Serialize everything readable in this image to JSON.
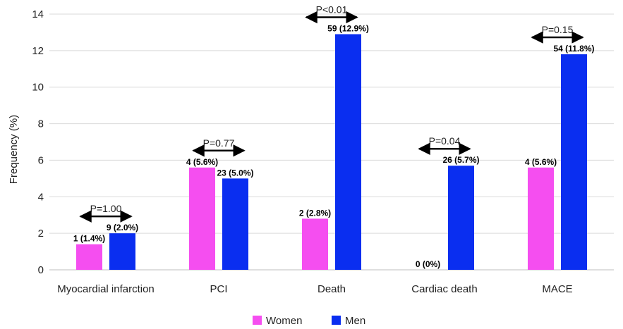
{
  "chart_data": {
    "type": "bar",
    "categories": [
      "Myocardial infarction",
      "PCI",
      "Death",
      "Cardiac death",
      "MACE"
    ],
    "series": [
      {
        "name": "Women",
        "color": "#f54ef0",
        "values": [
          1.4,
          5.6,
          2.8,
          0,
          5.6
        ],
        "labels": [
          "1 (1.4%)",
          "4 (5.6%)",
          "2 (2.8%)",
          "0 (0%)",
          "4 (5.6%)"
        ]
      },
      {
        "name": "Men",
        "color": "#0a2ef0",
        "values": [
          2.0,
          5.0,
          12.9,
          5.7,
          11.8
        ],
        "labels": [
          "9 (2.0%)",
          "23 (5.0%)",
          "59 (12.9%)",
          "26 (5.7%)",
          "54 (11.8%)"
        ]
      }
    ],
    "p_values": [
      "P=1.00",
      "P=0.77",
      "P<0.01",
      "P=0.04",
      "P=0.15"
    ],
    "ylabel": "Frequency (%)",
    "xlabel": "",
    "ylim": [
      0,
      14
    ],
    "yticks": [
      0,
      2,
      4,
      6,
      8,
      10,
      12,
      14
    ],
    "grid": true,
    "legend_position": "bottom"
  }
}
